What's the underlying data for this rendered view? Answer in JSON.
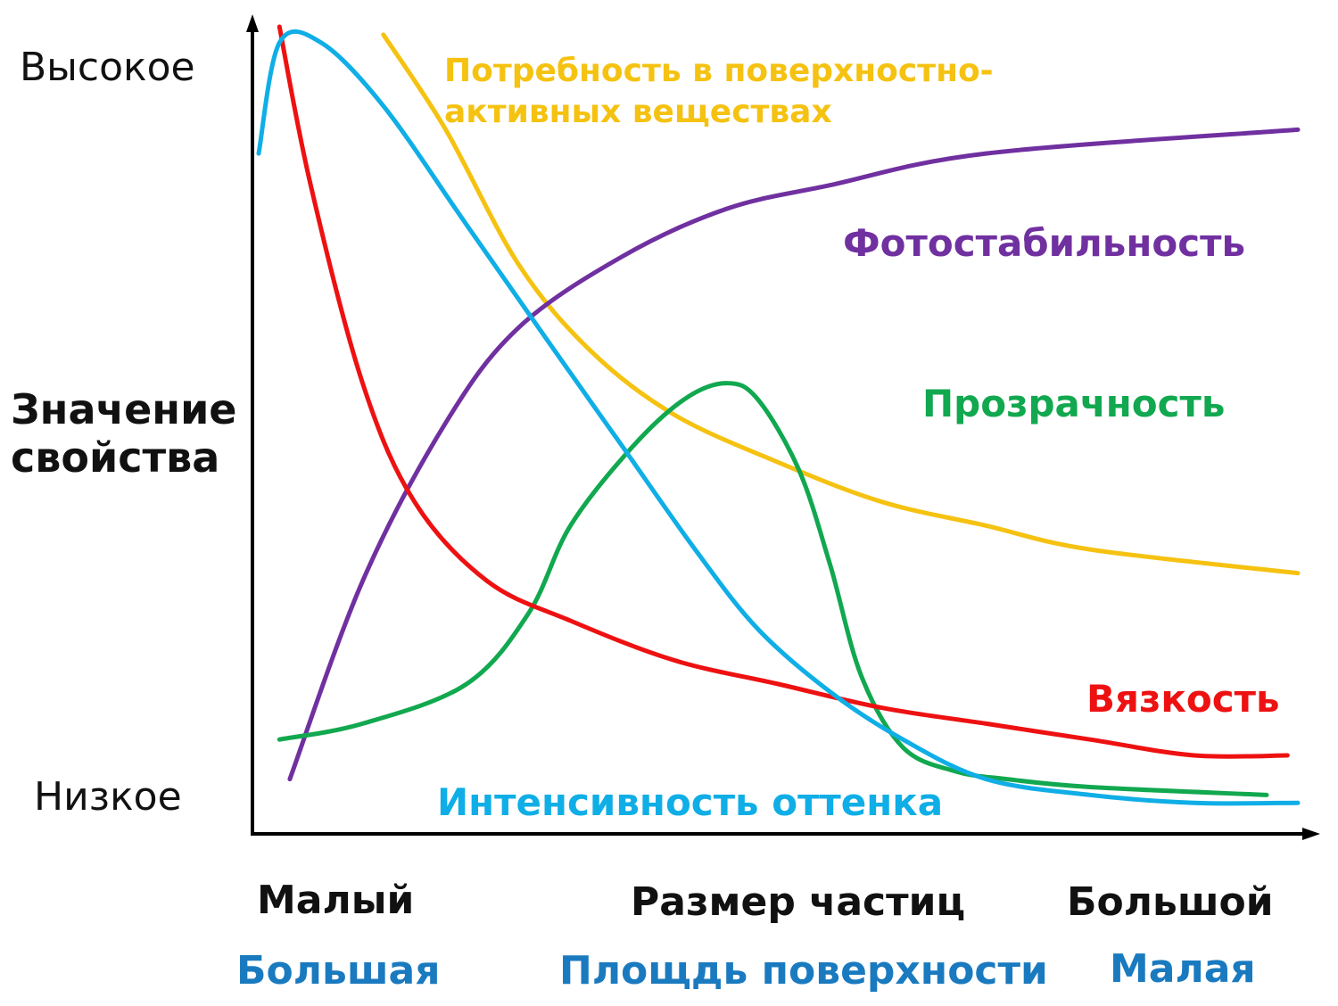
{
  "chart_data": {
    "type": "line",
    "x_axis": {
      "title": "Размер частиц",
      "left_label": "Малый",
      "right_label": "Большой",
      "secondary_title": "Площдь поверхности",
      "secondary_left_label": "Большая",
      "secondary_right_label": "Малая",
      "secondary_color": "#1a7abf",
      "range": [
        0,
        100
      ]
    },
    "y_axis": {
      "title": "Значение свойства",
      "high_label": "Высокое",
      "low_label": "Низкое",
      "range": [
        0,
        100
      ]
    },
    "series": [
      {
        "name": "Потребность в поверхностно-активных веществах",
        "color": "#f5c211",
        "points": [
          [
            12,
            99
          ],
          [
            18,
            87
          ],
          [
            25,
            70
          ],
          [
            32,
            59
          ],
          [
            40,
            51
          ],
          [
            50,
            45
          ],
          [
            60,
            40
          ],
          [
            70,
            37
          ],
          [
            80,
            34
          ],
          [
            100,
            31
          ]
        ]
      },
      {
        "name": "Фотостабильность",
        "color": "#7030a0",
        "points": [
          [
            3,
            5
          ],
          [
            10,
            30
          ],
          [
            18,
            50
          ],
          [
            25,
            62
          ],
          [
            35,
            71
          ],
          [
            45,
            77
          ],
          [
            55,
            80
          ],
          [
            70,
            84
          ],
          [
            100,
            87
          ]
        ]
      },
      {
        "name": "Прозрачность",
        "color": "#11a84f",
        "points": [
          [
            2,
            10
          ],
          [
            10,
            12
          ],
          [
            20,
            17
          ],
          [
            26,
            26
          ],
          [
            30,
            37
          ],
          [
            36,
            47
          ],
          [
            41,
            53
          ],
          [
            45,
            55
          ],
          [
            48,
            53
          ],
          [
            52,
            44
          ],
          [
            55,
            32
          ],
          [
            58,
            18
          ],
          [
            62,
            9
          ],
          [
            67,
            6
          ],
          [
            72,
            5
          ],
          [
            80,
            4
          ],
          [
            97,
            3
          ]
        ]
      },
      {
        "name": "Вязкость",
        "color": "#ee1111",
        "points": [
          [
            2,
            100
          ],
          [
            5,
            80
          ],
          [
            10,
            55
          ],
          [
            15,
            40
          ],
          [
            22,
            30
          ],
          [
            30,
            25
          ],
          [
            40,
            20
          ],
          [
            50,
            17
          ],
          [
            60,
            14
          ],
          [
            70,
            12
          ],
          [
            80,
            10
          ],
          [
            90,
            8
          ],
          [
            99,
            8
          ]
        ]
      },
      {
        "name": "Интенсивность оттенка",
        "color": "#10aee6",
        "points": [
          [
            0,
            84
          ],
          [
            2,
            98
          ],
          [
            6,
            98
          ],
          [
            12,
            90
          ],
          [
            20,
            75
          ],
          [
            28,
            60
          ],
          [
            35,
            47
          ],
          [
            42,
            34
          ],
          [
            48,
            24
          ],
          [
            55,
            16
          ],
          [
            62,
            10
          ],
          [
            70,
            5
          ],
          [
            80,
            3
          ],
          [
            90,
            2
          ],
          [
            100,
            2
          ]
        ]
      }
    ]
  }
}
